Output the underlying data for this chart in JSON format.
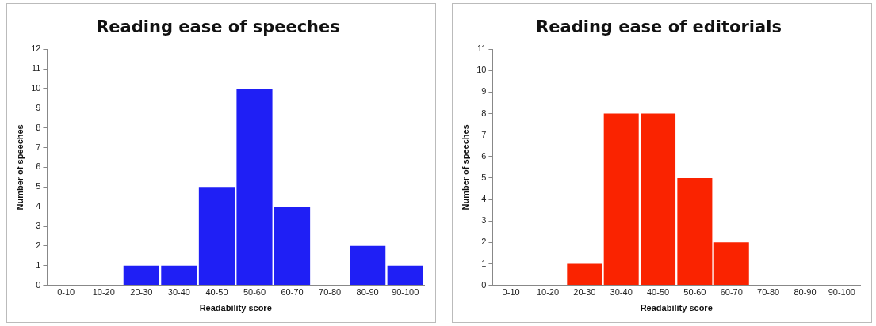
{
  "chart_data": [
    {
      "type": "bar",
      "title": "Reading ease of speeches",
      "xlabel": "Readability score",
      "ylabel": "Number of speeches",
      "categories": [
        "0-10",
        "10-20",
        "20-30",
        "30-40",
        "40-50",
        "50-60",
        "60-70",
        "70-80",
        "80-90",
        "90-100"
      ],
      "values": [
        0,
        0,
        1,
        1,
        5,
        10,
        4,
        0,
        2,
        1
      ],
      "color": "#1f1ff5",
      "ylim": [
        0,
        12
      ],
      "yticks": [
        0,
        1,
        2,
        3,
        4,
        5,
        6,
        7,
        8,
        9,
        10,
        11,
        12
      ],
      "grid": false,
      "legend": false
    },
    {
      "type": "bar",
      "title": "Reading ease of editorials",
      "xlabel": "Readability score",
      "ylabel": "Number of speeches",
      "categories": [
        "0-10",
        "10-20",
        "20-30",
        "30-40",
        "40-50",
        "50-60",
        "60-70",
        "70-80",
        "80-90",
        "90-100"
      ],
      "values": [
        0,
        0,
        1,
        8,
        8,
        5,
        2,
        0,
        0,
        0
      ],
      "color": "#fa2300",
      "ylim": [
        0,
        11
      ],
      "yticks": [
        0,
        1,
        2,
        3,
        4,
        5,
        6,
        7,
        8,
        9,
        10,
        11
      ],
      "grid": false,
      "legend": false
    }
  ]
}
